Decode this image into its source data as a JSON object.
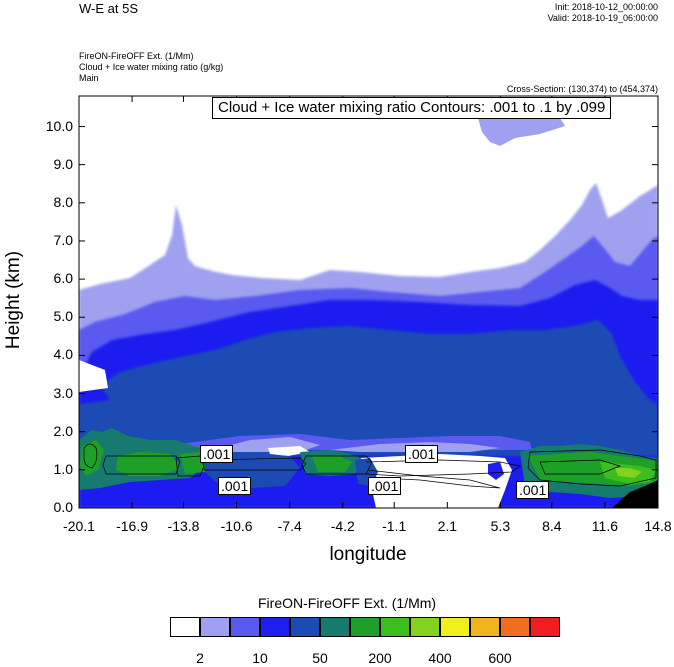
{
  "header": {
    "left_title": "W-E at 5S",
    "init": "Init: 2018-10-12_00:00:00",
    "valid": "Valid: 2018-10-19_06:00:00",
    "field_line1": "FireON-FireOFF Ext.   (1/Mm)",
    "field_line2": "Cloud + Ice water mixing ratio   (g/kg)",
    "field_line3": "Main",
    "cross_section": "Cross-Section: (130,374) to (454,374)"
  },
  "chart_data": {
    "type": "heatmap",
    "contour_label": "Cloud + Ice water mixing ratio Contours: .001 to .1 by .099",
    "xlabel": "longitude",
    "ylabel": "Height (km)",
    "xlim": [
      -20.1,
      14.8
    ],
    "ylim": [
      0.0,
      10.8
    ],
    "x_ticks": [
      "-20.1",
      "-16.9",
      "-13.8",
      "-10.6",
      "-7.4",
      "-4.2",
      "-1.1",
      "2.1",
      "5.3",
      "8.4",
      "11.6",
      "14.8"
    ],
    "y_ticks": [
      "0.0",
      "1.0",
      "2.0",
      "3.0",
      "4.0",
      "5.0",
      "6.0",
      "7.0",
      "8.0",
      "9.0",
      "10.0"
    ],
    "contour_inline_labels": [
      ".001",
      ".001",
      ".001",
      ".001",
      ".001"
    ],
    "colorbar": {
      "title": "FireON-FireOFF Ext.  (1/Mm)",
      "colors": [
        "#ffffff",
        "#a0a0f0",
        "#5a5af0",
        "#1e1ef0",
        "#1c4bb4",
        "#177a6e",
        "#1ea028",
        "#3cbe1e",
        "#82d21e",
        "#f0f01e",
        "#f0b41e",
        "#f06e1e",
        "#f01e1e"
      ],
      "labels": [
        "2",
        "10",
        "50",
        "200",
        "400",
        "600"
      ]
    }
  }
}
